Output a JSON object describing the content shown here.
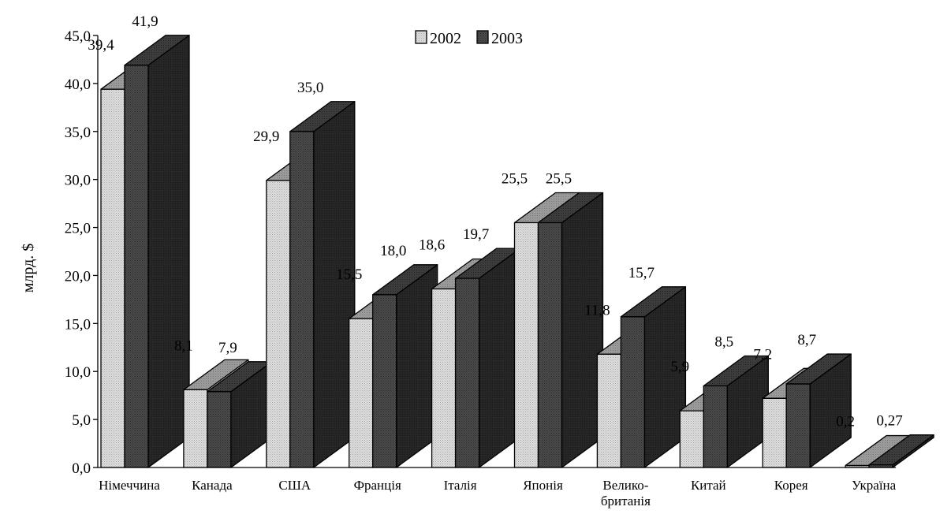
{
  "chart_data": {
    "type": "bar",
    "title": "",
    "xlabel": "",
    "ylabel": "млрд. $",
    "ylim": [
      0,
      45
    ],
    "yticks": [
      "0,0",
      "5,0",
      "10,0",
      "15,0",
      "20,0",
      "25,0",
      "30,0",
      "35,0",
      "40,0",
      "45,0"
    ],
    "categories": [
      [
        "Німеччина"
      ],
      [
        "Канада"
      ],
      [
        "США"
      ],
      [
        "Франція"
      ],
      [
        "Італія"
      ],
      [
        "Японія"
      ],
      [
        "Велико-",
        "британія"
      ],
      [
        "Китай"
      ],
      [
        "Корея"
      ],
      [
        "Україна"
      ]
    ],
    "series": [
      {
        "name": "2002",
        "color": "#d9d9d9",
        "values": [
          39.4,
          8.1,
          29.9,
          15.5,
          18.6,
          25.5,
          11.8,
          5.9,
          7.2,
          0.2
        ],
        "labels": [
          "39,4",
          "8,1",
          "29,9",
          "15,5",
          "18,6",
          "25,5",
          "11,8",
          "5,9",
          "7,2",
          "0,2"
        ]
      },
      {
        "name": "2003",
        "color": "#4d4d4d",
        "values": [
          41.9,
          7.9,
          35.0,
          18.0,
          19.7,
          25.5,
          15.7,
          8.5,
          8.7,
          0.27
        ],
        "labels": [
          "41,9",
          "7,9",
          "35,0",
          "18,0",
          "19,7",
          "25,5",
          "15,7",
          "8,5",
          "8,7",
          "0,27"
        ]
      }
    ],
    "legend": {
      "position": "top-center",
      "entries": [
        "2002",
        "2003"
      ]
    },
    "grid": false,
    "style": "3d-bar"
  }
}
